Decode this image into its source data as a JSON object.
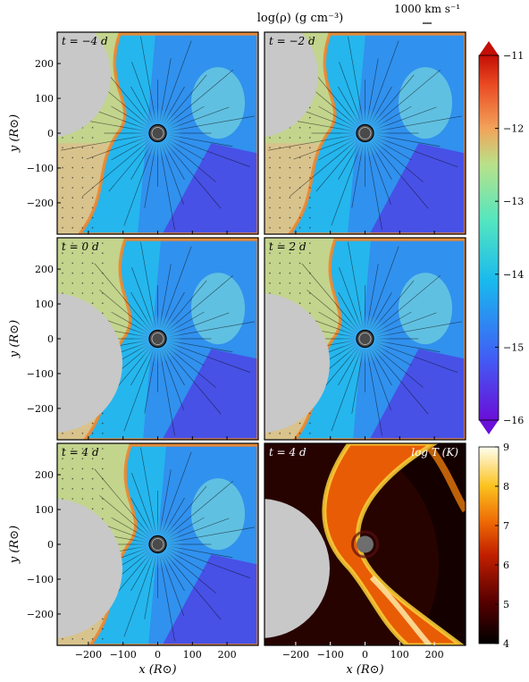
{
  "figure": {
    "colorbar_title": "log(ρ) (g cm⁻³)",
    "scale_arrow_label": "1000 km s⁻¹",
    "temperature_label": "log T (K)",
    "x_axis_label": "x (R⊙)",
    "y_axis_label": "y (R⊙)"
  },
  "chart_data": [
    {
      "type": "heatmap",
      "panel": "density",
      "time_labels": [
        "t = −4 d",
        "t = −2 d",
        "t = 0 d",
        "t = 2 d",
        "t = 4 d"
      ],
      "quantity": "log(ρ) (g cm⁻³)",
      "xlim": [
        -290,
        290
      ],
      "ylim": [
        -290,
        290
      ],
      "x_ticks": [
        -200,
        -100,
        0,
        100,
        200
      ],
      "y_ticks": [
        200,
        100,
        0,
        -100,
        -200
      ],
      "colorbar_range": [
        -16,
        -11
      ],
      "colorbar_ticks": [
        -11,
        -12,
        -13,
        -14,
        -15,
        -16
      ],
      "colors": {
        "low": "#5b16e6",
        "mid_low": "#1aa8f0",
        "mid": "#57e2c0",
        "mid_high": "#c9d68c",
        "ambient": "#d7c28c",
        "high": "#d81e05"
      }
    },
    {
      "type": "heatmap",
      "panel": "temperature",
      "time_labels": [
        "t = 4 d"
      ],
      "quantity": "log T (K)",
      "xlim": [
        -290,
        290
      ],
      "ylim": [
        -290,
        290
      ],
      "x_ticks": [
        -200,
        -100,
        0,
        100,
        200
      ],
      "colorbar_range": [
        4,
        9
      ],
      "colorbar_ticks": [
        9,
        8,
        7,
        6,
        5,
        4
      ],
      "colors": {
        "low": "#000000",
        "mid": "#d94a05",
        "high": "#fffde0"
      }
    }
  ]
}
